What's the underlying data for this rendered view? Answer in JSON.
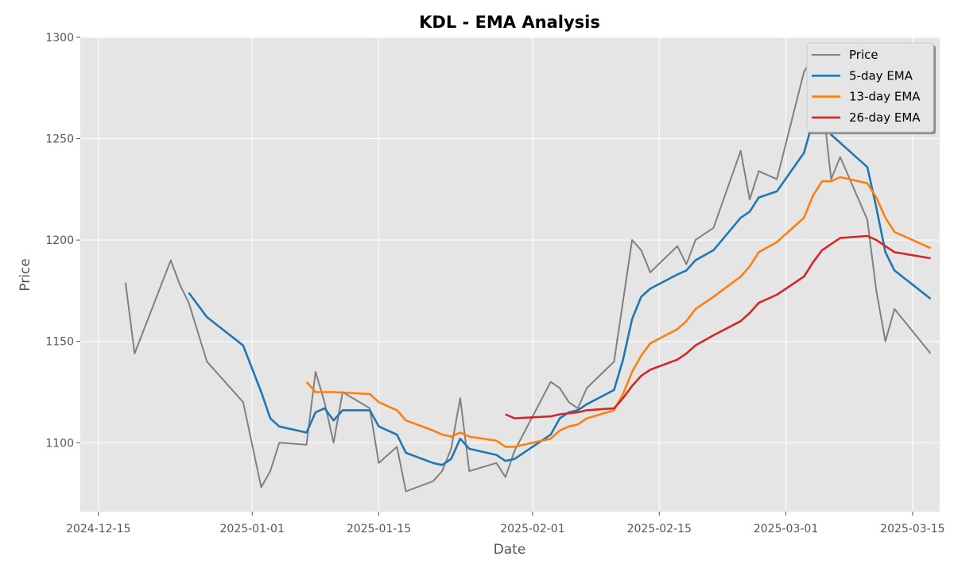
{
  "chart_data": {
    "type": "line",
    "title": "KDL - EMA Analysis",
    "xlabel": "Date",
    "ylabel": "Price",
    "xlim": [
      "2024-12-13",
      "2025-03-18"
    ],
    "ylim": [
      1066,
      1300
    ],
    "x_ticks": [
      "2024-12-15",
      "2025-01-01",
      "2025-01-15",
      "2025-02-01",
      "2025-02-15",
      "2025-03-01",
      "2025-03-15"
    ],
    "y_ticks": [
      1100,
      1150,
      1200,
      1250,
      1300
    ],
    "grid": true,
    "legend_position": "top-right",
    "series": [
      {
        "name": "Price",
        "color": "#808080",
        "points": [
          [
            "2024-12-18",
            1179
          ],
          [
            "2024-12-19",
            1144
          ],
          [
            "2024-12-23",
            1190
          ],
          [
            "2024-12-24",
            1178
          ],
          [
            "2024-12-25",
            1169
          ],
          [
            "2024-12-27",
            1140
          ],
          [
            "2024-12-31",
            1120
          ],
          [
            "2025-01-02",
            1078
          ],
          [
            "2025-01-03",
            1086
          ],
          [
            "2025-01-04",
            1100
          ],
          [
            "2025-01-07",
            1099
          ],
          [
            "2025-01-08",
            1135
          ],
          [
            "2025-01-09",
            1120
          ],
          [
            "2025-01-10",
            1100
          ],
          [
            "2025-01-11",
            1125
          ],
          [
            "2025-01-14",
            1117
          ],
          [
            "2025-01-15",
            1090
          ],
          [
            "2025-01-17",
            1098
          ],
          [
            "2025-01-18",
            1076
          ],
          [
            "2025-01-21",
            1081
          ],
          [
            "2025-01-22",
            1086
          ],
          [
            "2025-01-23",
            1097
          ],
          [
            "2025-01-24",
            1122
          ],
          [
            "2025-01-25",
            1086
          ],
          [
            "2025-01-28",
            1090
          ],
          [
            "2025-01-29",
            1083
          ],
          [
            "2025-01-30",
            1096
          ],
          [
            "2025-02-03",
            1130
          ],
          [
            "2025-02-04",
            1127
          ],
          [
            "2025-02-05",
            1120
          ],
          [
            "2025-02-06",
            1117
          ],
          [
            "2025-02-07",
            1127
          ],
          [
            "2025-02-10",
            1140
          ],
          [
            "2025-02-12",
            1200
          ],
          [
            "2025-02-13",
            1195
          ],
          [
            "2025-02-14",
            1184
          ],
          [
            "2025-02-17",
            1197
          ],
          [
            "2025-02-18",
            1188
          ],
          [
            "2025-02-19",
            1200
          ],
          [
            "2025-02-21",
            1206
          ],
          [
            "2025-02-24",
            1244
          ],
          [
            "2025-02-25",
            1220
          ],
          [
            "2025-02-26",
            1234
          ],
          [
            "2025-02-28",
            1230
          ],
          [
            "2025-03-03",
            1283
          ],
          [
            "2025-03-04",
            1290
          ],
          [
            "2025-03-05",
            1270
          ],
          [
            "2025-03-06",
            1230
          ],
          [
            "2025-03-07",
            1241
          ],
          [
            "2025-03-10",
            1210
          ],
          [
            "2025-03-11",
            1175
          ],
          [
            "2025-03-12",
            1150
          ],
          [
            "2025-03-13",
            1166
          ],
          [
            "2025-03-17",
            1144
          ]
        ]
      },
      {
        "name": "5-day EMA",
        "color": "#1f77b4",
        "points": [
          [
            "2024-12-25",
            1174
          ],
          [
            "2024-12-27",
            1162
          ],
          [
            "2024-12-31",
            1148
          ],
          [
            "2025-01-02",
            1125
          ],
          [
            "2025-01-03",
            1112
          ],
          [
            "2025-01-04",
            1108
          ],
          [
            "2025-01-07",
            1105
          ],
          [
            "2025-01-08",
            1115
          ],
          [
            "2025-01-09",
            1117
          ],
          [
            "2025-01-10",
            1111
          ],
          [
            "2025-01-11",
            1116
          ],
          [
            "2025-01-14",
            1116
          ],
          [
            "2025-01-15",
            1108
          ],
          [
            "2025-01-17",
            1104
          ],
          [
            "2025-01-18",
            1095
          ],
          [
            "2025-01-21",
            1090
          ],
          [
            "2025-01-22",
            1089
          ],
          [
            "2025-01-23",
            1092
          ],
          [
            "2025-01-24",
            1102
          ],
          [
            "2025-01-25",
            1097
          ],
          [
            "2025-01-28",
            1094
          ],
          [
            "2025-01-29",
            1091
          ],
          [
            "2025-01-30",
            1092
          ],
          [
            "2025-02-03",
            1104
          ],
          [
            "2025-02-04",
            1112
          ],
          [
            "2025-02-05",
            1115
          ],
          [
            "2025-02-06",
            1116
          ],
          [
            "2025-02-07",
            1119
          ],
          [
            "2025-02-10",
            1126
          ],
          [
            "2025-02-11",
            1141
          ],
          [
            "2025-02-12",
            1161
          ],
          [
            "2025-02-13",
            1172
          ],
          [
            "2025-02-14",
            1176
          ],
          [
            "2025-02-17",
            1183
          ],
          [
            "2025-02-18",
            1185
          ],
          [
            "2025-02-19",
            1190
          ],
          [
            "2025-02-21",
            1195
          ],
          [
            "2025-02-24",
            1211
          ],
          [
            "2025-02-25",
            1214
          ],
          [
            "2025-02-26",
            1221
          ],
          [
            "2025-02-28",
            1224
          ],
          [
            "2025-03-03",
            1243
          ],
          [
            "2025-03-04",
            1259
          ],
          [
            "2025-03-05",
            1263
          ],
          [
            "2025-03-06",
            1252
          ],
          [
            "2025-03-07",
            1248
          ],
          [
            "2025-03-10",
            1236
          ],
          [
            "2025-03-11",
            1216
          ],
          [
            "2025-03-12",
            1194
          ],
          [
            "2025-03-13",
            1185
          ],
          [
            "2025-03-17",
            1171
          ]
        ]
      },
      {
        "name": "13-day EMA",
        "color": "#ff7f0e",
        "points": [
          [
            "2025-01-07",
            1130
          ],
          [
            "2025-01-08",
            1125
          ],
          [
            "2025-01-10",
            1125
          ],
          [
            "2025-01-14",
            1124
          ],
          [
            "2025-01-15",
            1120
          ],
          [
            "2025-01-17",
            1116
          ],
          [
            "2025-01-18",
            1111
          ],
          [
            "2025-01-21",
            1106
          ],
          [
            "2025-01-22",
            1104
          ],
          [
            "2025-01-23",
            1103
          ],
          [
            "2025-01-24",
            1105
          ],
          [
            "2025-01-25",
            1103
          ],
          [
            "2025-01-28",
            1101
          ],
          [
            "2025-01-29",
            1098
          ],
          [
            "2025-01-30",
            1098
          ],
          [
            "2025-02-03",
            1102
          ],
          [
            "2025-02-04",
            1106
          ],
          [
            "2025-02-05",
            1108
          ],
          [
            "2025-02-06",
            1109
          ],
          [
            "2025-02-07",
            1112
          ],
          [
            "2025-02-10",
            1116
          ],
          [
            "2025-02-11",
            1124
          ],
          [
            "2025-02-12",
            1135
          ],
          [
            "2025-02-13",
            1143
          ],
          [
            "2025-02-14",
            1149
          ],
          [
            "2025-02-17",
            1156
          ],
          [
            "2025-02-18",
            1160
          ],
          [
            "2025-02-19",
            1166
          ],
          [
            "2025-02-21",
            1172
          ],
          [
            "2025-02-24",
            1182
          ],
          [
            "2025-02-25",
            1187
          ],
          [
            "2025-02-26",
            1194
          ],
          [
            "2025-02-28",
            1199
          ],
          [
            "2025-03-03",
            1211
          ],
          [
            "2025-03-04",
            1222
          ],
          [
            "2025-03-05",
            1229
          ],
          [
            "2025-03-06",
            1229
          ],
          [
            "2025-03-07",
            1231
          ],
          [
            "2025-03-10",
            1228
          ],
          [
            "2025-03-11",
            1221
          ],
          [
            "2025-03-12",
            1211
          ],
          [
            "2025-03-13",
            1204
          ],
          [
            "2025-03-17",
            1196
          ]
        ]
      },
      {
        "name": "26-day EMA",
        "color": "#d62728",
        "points": [
          [
            "2025-01-29",
            1114
          ],
          [
            "2025-01-30",
            1112
          ],
          [
            "2025-02-03",
            1113
          ],
          [
            "2025-02-04",
            1114
          ],
          [
            "2025-02-06",
            1115
          ],
          [
            "2025-02-07",
            1116
          ],
          [
            "2025-02-10",
            1117
          ],
          [
            "2025-02-11",
            1122
          ],
          [
            "2025-02-12",
            1128
          ],
          [
            "2025-02-13",
            1133
          ],
          [
            "2025-02-14",
            1136
          ],
          [
            "2025-02-17",
            1141
          ],
          [
            "2025-02-18",
            1144
          ],
          [
            "2025-02-19",
            1148
          ],
          [
            "2025-02-21",
            1153
          ],
          [
            "2025-02-24",
            1160
          ],
          [
            "2025-02-25",
            1164
          ],
          [
            "2025-02-26",
            1169
          ],
          [
            "2025-02-28",
            1173
          ],
          [
            "2025-03-03",
            1182
          ],
          [
            "2025-03-04",
            1189
          ],
          [
            "2025-03-05",
            1195
          ],
          [
            "2025-03-06",
            1198
          ],
          [
            "2025-03-07",
            1201
          ],
          [
            "2025-03-10",
            1202
          ],
          [
            "2025-03-11",
            1200
          ],
          [
            "2025-03-12",
            1197
          ],
          [
            "2025-03-13",
            1194
          ],
          [
            "2025-03-17",
            1191
          ]
        ]
      }
    ]
  }
}
